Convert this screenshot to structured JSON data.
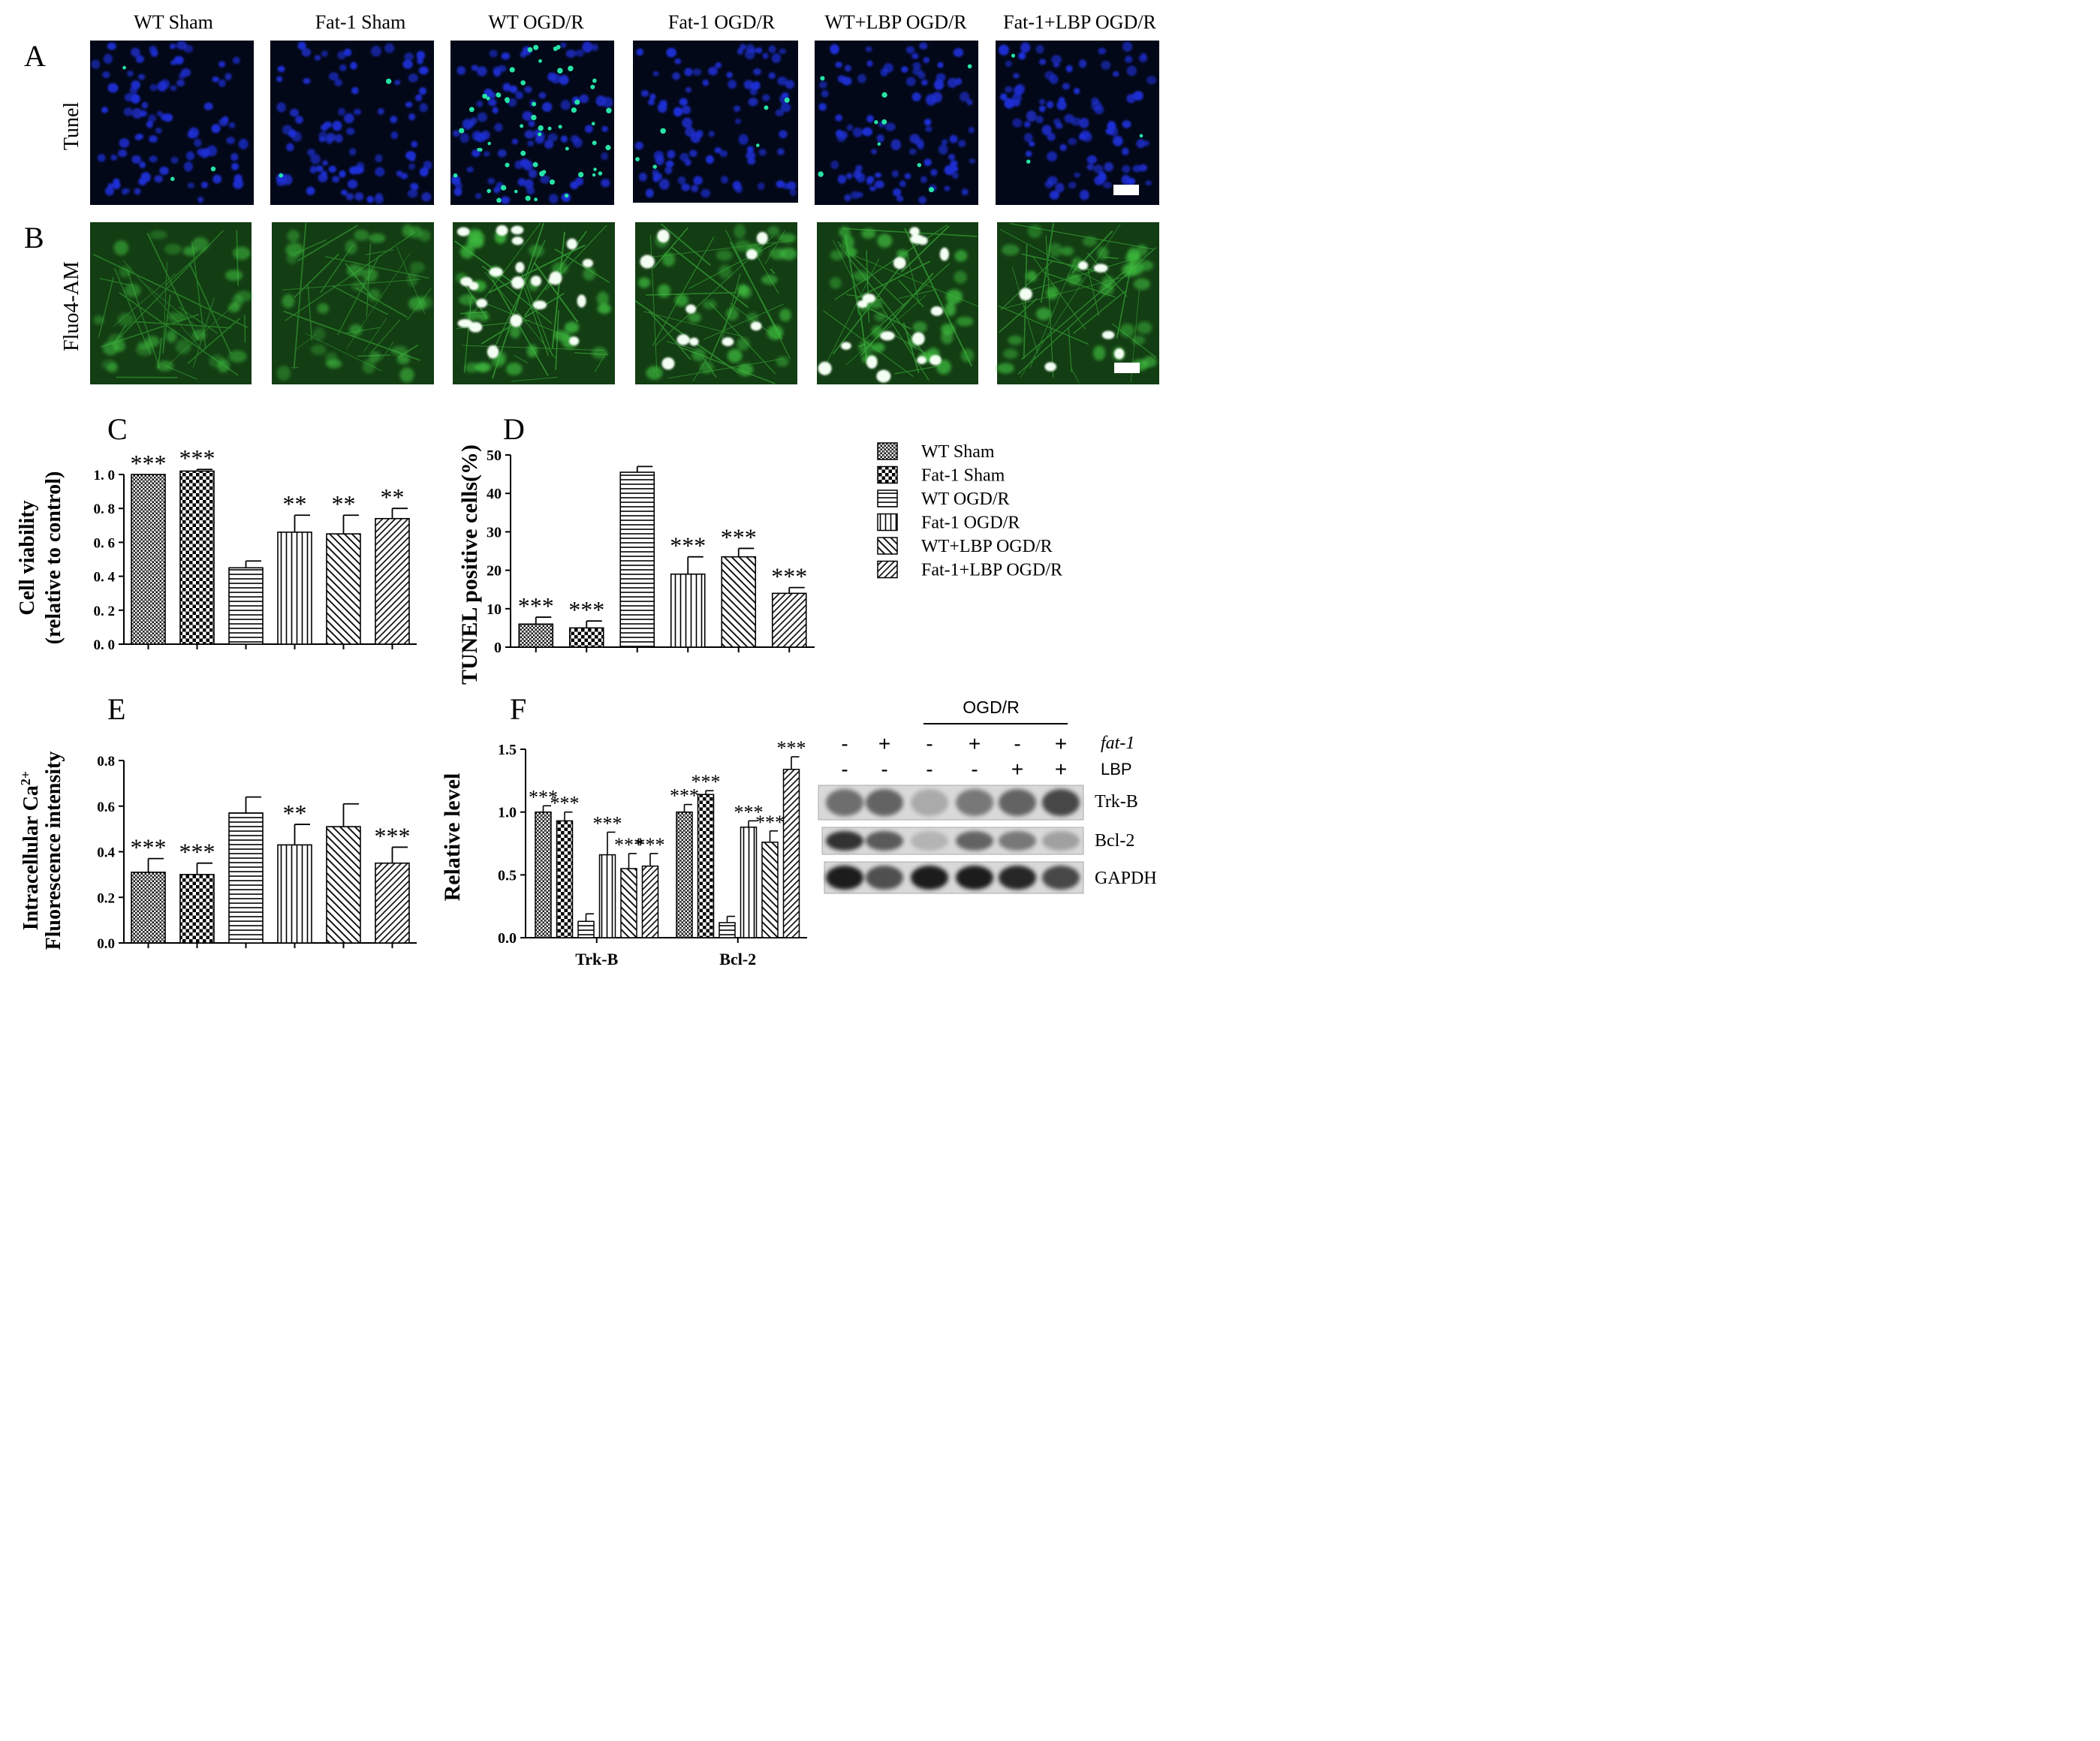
{
  "groups": [
    "WT Sham",
    "Fat-1 Sham",
    "WT OGD/R",
    "Fat-1 OGD/R",
    "WT+LBP OGD/R",
    "Fat-1+LBP OGD/R"
  ],
  "panel_letters": {
    "a": "A",
    "b": "B",
    "c": "C",
    "d": "D",
    "e": "E",
    "f": "F"
  },
  "row_labels": {
    "tunel": "Tunel",
    "fluo": "Fluo4-AM"
  },
  "legend": [
    "WT Sham",
    "Fat-1 Sham",
    "WT OGD/R",
    "Fat-1 OGD/R",
    "WT+LBP OGD/R",
    "Fat-1+LBP OGD/R"
  ],
  "colors": {
    "tunel_bg": "#030818",
    "nucleus": "#1e2fd6",
    "tunel_pos": "#27e4a6",
    "fluo_bg": "#133d13",
    "fluo_cell": "#3fbf3f",
    "fluo_hot": "#f4fff4",
    "scale_bar": "#ffffff",
    "bar_outline": "#000000"
  },
  "western": {
    "ogdr_label": "OGD/R",
    "fat1_label": "fat-1",
    "lbp_label": "LBP",
    "fat1_signs": [
      "-",
      "+",
      "-",
      "+",
      "-",
      "+"
    ],
    "lbp_signs": [
      "-",
      "-",
      "-",
      "-",
      "+",
      "+"
    ],
    "bands": [
      {
        "name": "Trk-B",
        "intensity": [
          0.55,
          0.6,
          0.25,
          0.5,
          0.6,
          0.75
        ]
      },
      {
        "name": "Bcl-2",
        "intensity": [
          0.85,
          0.65,
          0.2,
          0.6,
          0.5,
          0.3
        ]
      },
      {
        "name": "GAPDH",
        "intensity": [
          0.95,
          0.7,
          0.95,
          0.95,
          0.9,
          0.75
        ]
      }
    ]
  },
  "chart_data": [
    {
      "panel": "C",
      "type": "bar",
      "categories": [
        "WT Sham",
        "Fat-1 Sham",
        "WT OGD/R",
        "Fat-1 OGD/R",
        "WT+LBP OGD/R",
        "Fat-1+LBP OGD/R"
      ],
      "values": [
        1.0,
        1.02,
        0.45,
        0.66,
        0.65,
        0.74
      ],
      "errors": [
        0.0,
        0.01,
        0.04,
        0.1,
        0.11,
        0.06
      ],
      "significance": [
        "***",
        "***",
        "",
        "**",
        "**",
        "**"
      ],
      "ylabel": "Cell viability",
      "ylabel2": "(relative to control)",
      "ylim": [
        0,
        1.0
      ],
      "yticks": [
        "0. 0",
        "0. 2",
        "0. 4",
        "0. 6",
        "0. 8",
        "1. 0"
      ]
    },
    {
      "panel": "D",
      "type": "bar",
      "categories": [
        "WT Sham",
        "Fat-1 Sham",
        "WT OGD/R",
        "Fat-1 OGD/R",
        "WT+LBP OGD/R",
        "Fat-1+LBP OGD/R"
      ],
      "values": [
        6,
        5,
        45.5,
        19,
        23.5,
        14
      ],
      "errors": [
        1.8,
        1.8,
        1.5,
        4.5,
        2.2,
        1.5
      ],
      "significance": [
        "***",
        "***",
        "",
        "***",
        "***",
        "***"
      ],
      "ylabel": "TUNEL positive cells(%)",
      "ylim": [
        0,
        50
      ],
      "yticks": [
        "0",
        "10",
        "20",
        "30",
        "40",
        "50"
      ]
    },
    {
      "panel": "E",
      "type": "bar",
      "categories": [
        "WT Sham",
        "Fat-1 Sham",
        "WT OGD/R",
        "Fat-1 OGD/R",
        "WT+LBP OGD/R",
        "Fat-1+LBP OGD/R"
      ],
      "values": [
        0.31,
        0.3,
        0.57,
        0.43,
        0.51,
        0.35
      ],
      "errors": [
        0.06,
        0.05,
        0.07,
        0.09,
        0.1,
        0.07
      ],
      "significance": [
        "***",
        "***",
        "",
        "**",
        "",
        "***"
      ],
      "ylabel_main": "Intracellular Ca",
      "ylabel_sup": "2+",
      "ylabel2": "Fluorescence intensity",
      "ylim": [
        0,
        0.8
      ],
      "yticks": [
        "0.0",
        "0.2",
        "0.4",
        "0.6",
        "0.8"
      ]
    },
    {
      "panel": "F",
      "type": "bar",
      "categories": [
        "Trk-B",
        "Bcl-2"
      ],
      "series": [
        {
          "name": "WT Sham",
          "values": [
            1.0,
            1.0
          ],
          "errors": [
            0.05,
            0.06
          ],
          "significance": [
            "***",
            "***"
          ]
        },
        {
          "name": "Fat-1 Sham",
          "values": [
            0.93,
            1.14
          ],
          "errors": [
            0.07,
            0.03
          ],
          "significance": [
            "***",
            "***"
          ]
        },
        {
          "name": "WT OGD/R",
          "values": [
            0.13,
            0.12
          ],
          "errors": [
            0.06,
            0.05
          ],
          "significance": [
            "",
            ""
          ]
        },
        {
          "name": "Fat-1 OGD/R",
          "values": [
            0.66,
            0.88
          ],
          "errors": [
            0.18,
            0.05
          ],
          "significance": [
            "***",
            "***"
          ]
        },
        {
          "name": "WT+LBP OGD/R",
          "values": [
            0.55,
            0.76
          ],
          "errors": [
            0.12,
            0.09
          ],
          "significance": [
            "***",
            "***"
          ]
        },
        {
          "name": "Fat-1+LBP OGD/R",
          "values": [
            0.57,
            1.34
          ],
          "errors": [
            0.1,
            0.1
          ],
          "significance": [
            "***",
            "***"
          ]
        }
      ],
      "ylabel": "Relative level",
      "ylim": [
        0,
        1.5
      ],
      "yticks": [
        "0.0",
        "0.5",
        "1.0",
        "1.5"
      ]
    }
  ]
}
